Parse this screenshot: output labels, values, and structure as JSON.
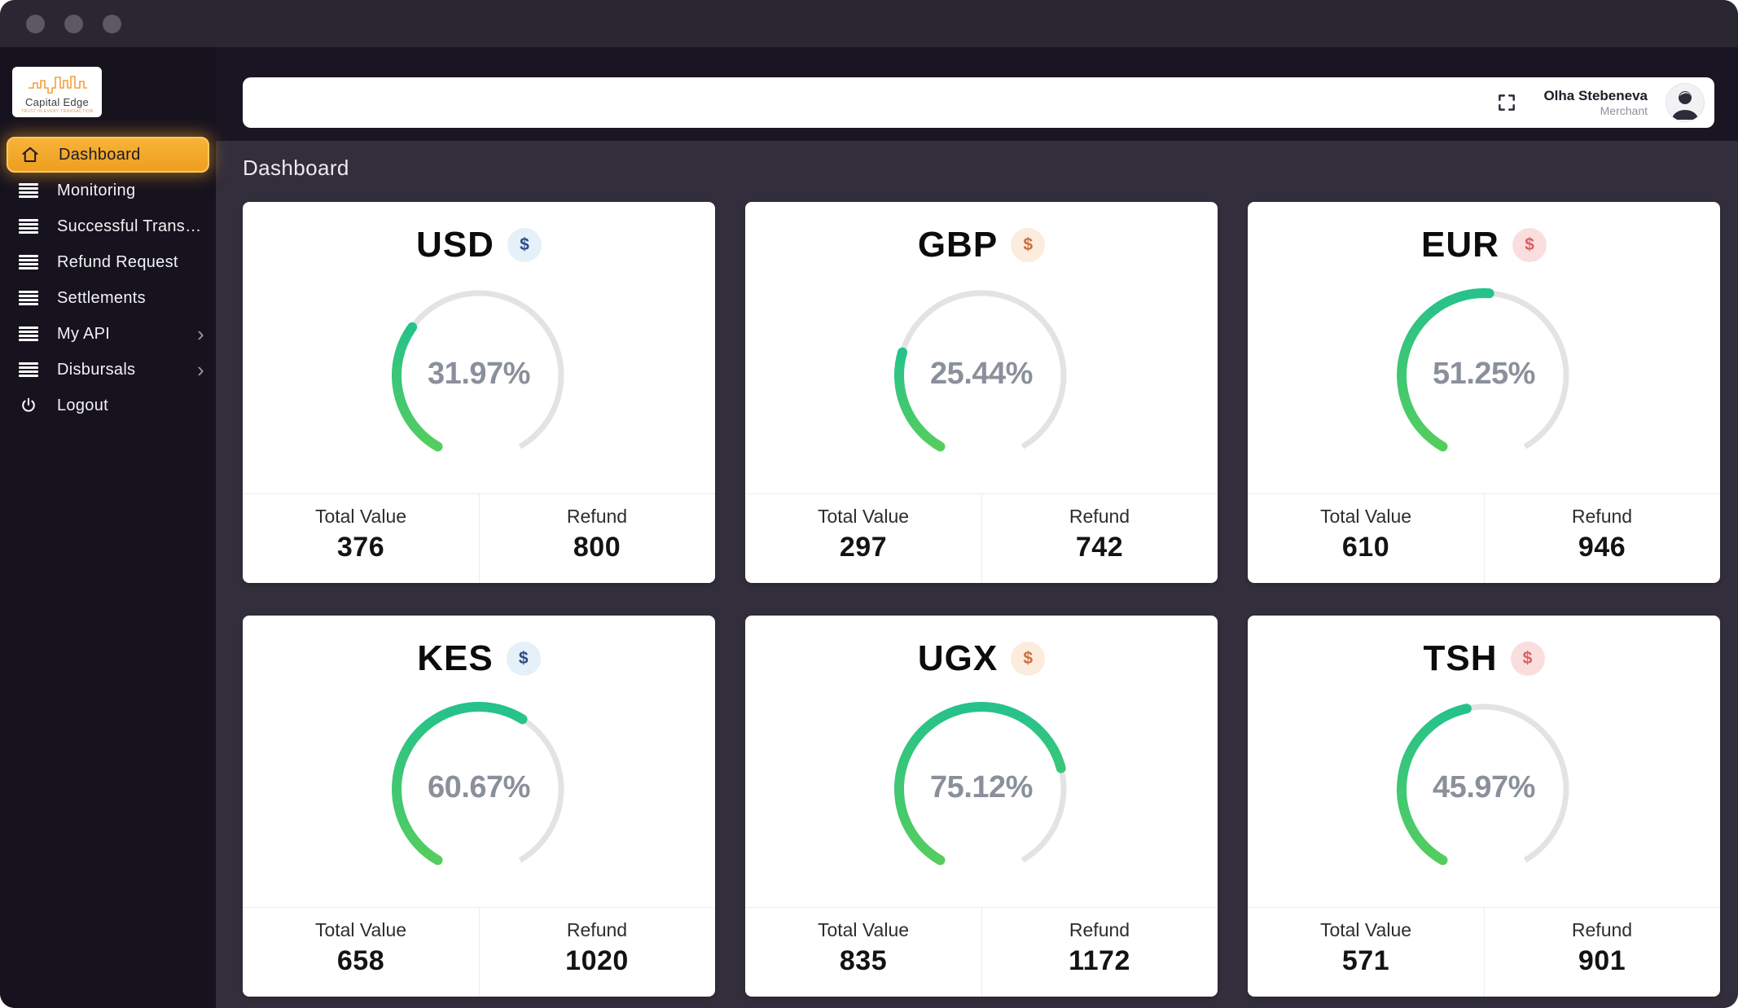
{
  "sidebar": {
    "logo": {
      "name": "Capital Edge",
      "tagline": "TRUST IN EVERY TRANSACTION"
    },
    "items": [
      {
        "label": "Dashboard",
        "icon": "home-icon",
        "active": true
      },
      {
        "label": "Monitoring",
        "icon": "list-icon"
      },
      {
        "label": "Successful Transact...",
        "icon": "list-icon"
      },
      {
        "label": "Refund Request",
        "icon": "list-icon"
      },
      {
        "label": "Settlements",
        "icon": "list-icon"
      },
      {
        "label": "My API",
        "icon": "list-icon",
        "has_submenu": true
      },
      {
        "label": "Disbursals",
        "icon": "list-icon",
        "has_submenu": true
      },
      {
        "label": "Logout",
        "icon": "power-icon"
      }
    ]
  },
  "topbar": {
    "user": {
      "name": "Olha Stebeneva",
      "role": "Merchant"
    }
  },
  "page": {
    "title": "Dashboard"
  },
  "cards": [
    {
      "currency": "USD",
      "symbol": "$",
      "badge_color": "blue",
      "percent_label": "31.97%",
      "percent_value": 31.97,
      "total_label": "Total Value",
      "total_value": "376",
      "refund_label": "Refund",
      "refund_value": "800"
    },
    {
      "currency": "GBP",
      "symbol": "$",
      "badge_color": "orange",
      "percent_label": "25.44%",
      "percent_value": 25.44,
      "total_label": "Total Value",
      "total_value": "297",
      "refund_label": "Refund",
      "refund_value": "742"
    },
    {
      "currency": "EUR",
      "symbol": "$",
      "badge_color": "red",
      "percent_label": "51.25%",
      "percent_value": 51.25,
      "total_label": "Total Value",
      "total_value": "610",
      "refund_label": "Refund",
      "refund_value": "946"
    },
    {
      "currency": "KES",
      "symbol": "$",
      "badge_color": "blue",
      "percent_label": "60.67%",
      "percent_value": 60.67,
      "total_label": "Total Value",
      "total_value": "658",
      "refund_label": "Refund",
      "refund_value": "1020"
    },
    {
      "currency": "UGX",
      "symbol": "$",
      "badge_color": "orange",
      "percent_label": "75.12%",
      "percent_value": 75.12,
      "total_label": "Total Value",
      "total_value": "835",
      "refund_label": "Refund",
      "refund_value": "1172"
    },
    {
      "currency": "TSH",
      "symbol": "$",
      "badge_color": "red",
      "percent_label": "45.97%",
      "percent_value": 45.97,
      "total_label": "Total Value",
      "total_value": "571",
      "refund_label": "Refund",
      "refund_value": "901"
    }
  ],
  "gauge": {
    "start_angle_deg": 210,
    "span_deg": 300
  },
  "colors": {
    "accent_orange": "#f2a42e",
    "gauge_green_top": "#26c28b",
    "gauge_green_bottom": "#55cd5e",
    "gauge_track": "#e3e3e6",
    "sidebar_bg": "#16121e",
    "content_bg": "#322e3b",
    "badge_blue_bg": "#e5f1f8",
    "badge_blue_fg": "#2a4c85",
    "badge_orange_bg": "#fcecdd",
    "badge_orange_fg": "#ca6f40",
    "badge_red_bg": "#fadede",
    "badge_red_fg": "#e05d61"
  }
}
